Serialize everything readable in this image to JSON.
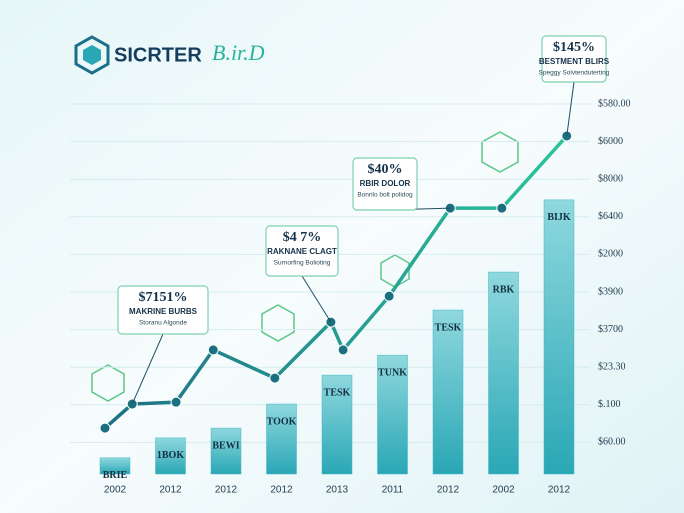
{
  "header": {
    "logo_text": "SICRTER",
    "logo_script": "B.ir.D"
  },
  "chart_data": {
    "type": "bar",
    "categories": [
      "2002",
      "2012",
      "2012",
      "2012",
      "2013",
      "2011",
      "2012",
      "2002",
      "2012"
    ],
    "values": [
      0.59,
      1.12,
      1.38,
      2.02,
      2.79,
      3.32,
      4.52,
      5.53,
      7.45
    ],
    "bar_labels": [
      "BRIE",
      "1BOK",
      "BEWI",
      "TOOK",
      "TESK",
      "TUNK",
      "TESK",
      "RBK",
      "BIJK"
    ],
    "color": "#3fb8c4",
    "line": {
      "color": "#22b8a0",
      "x": [
        -0.18,
        0.31,
        1.1,
        1.77,
        2.88,
        3.89,
        4.11,
        4.94,
        6.04,
        6.97,
        8.14
      ],
      "values": [
        1.38,
        2.02,
        2.07,
        3.46,
        2.71,
        4.2,
        3.46,
        4.89,
        7.23,
        7.23,
        9.15
      ]
    },
    "ylim": [
      0,
      10
    ],
    "yticks": [
      {
        "value": 1,
        "label": "$60.00"
      },
      {
        "value": 2,
        "label": "$.100"
      },
      {
        "value": 3,
        "label": "$23.30"
      },
      {
        "value": 4,
        "label": "$3700"
      },
      {
        "value": 5,
        "label": "$3900"
      },
      {
        "value": 6,
        "label": "$2000"
      },
      {
        "value": 7,
        "label": "$6400"
      },
      {
        "value": 8,
        "label": "$8000"
      },
      {
        "value": 9,
        "label": "$6000"
      },
      {
        "value": 10,
        "label": "$580.00"
      }
    ],
    "grid": true,
    "annotations": [
      {
        "title": "$145%",
        "subtitle": "BESTMENT BLIRS",
        "note": "Speggy Solvtenduterting"
      },
      {
        "title": "$40%",
        "subtitle": "RBIR DOLOR",
        "note": "Bonrilo bolt polidog"
      },
      {
        "title": "$4 7%",
        "subtitle": "RAKNANE CLAGT",
        "note": "Surnorfing Bolioting"
      },
      {
        "title": "$7151%",
        "subtitle": "MAKRINE BURBS",
        "note": "Storanu Algonde"
      }
    ]
  }
}
